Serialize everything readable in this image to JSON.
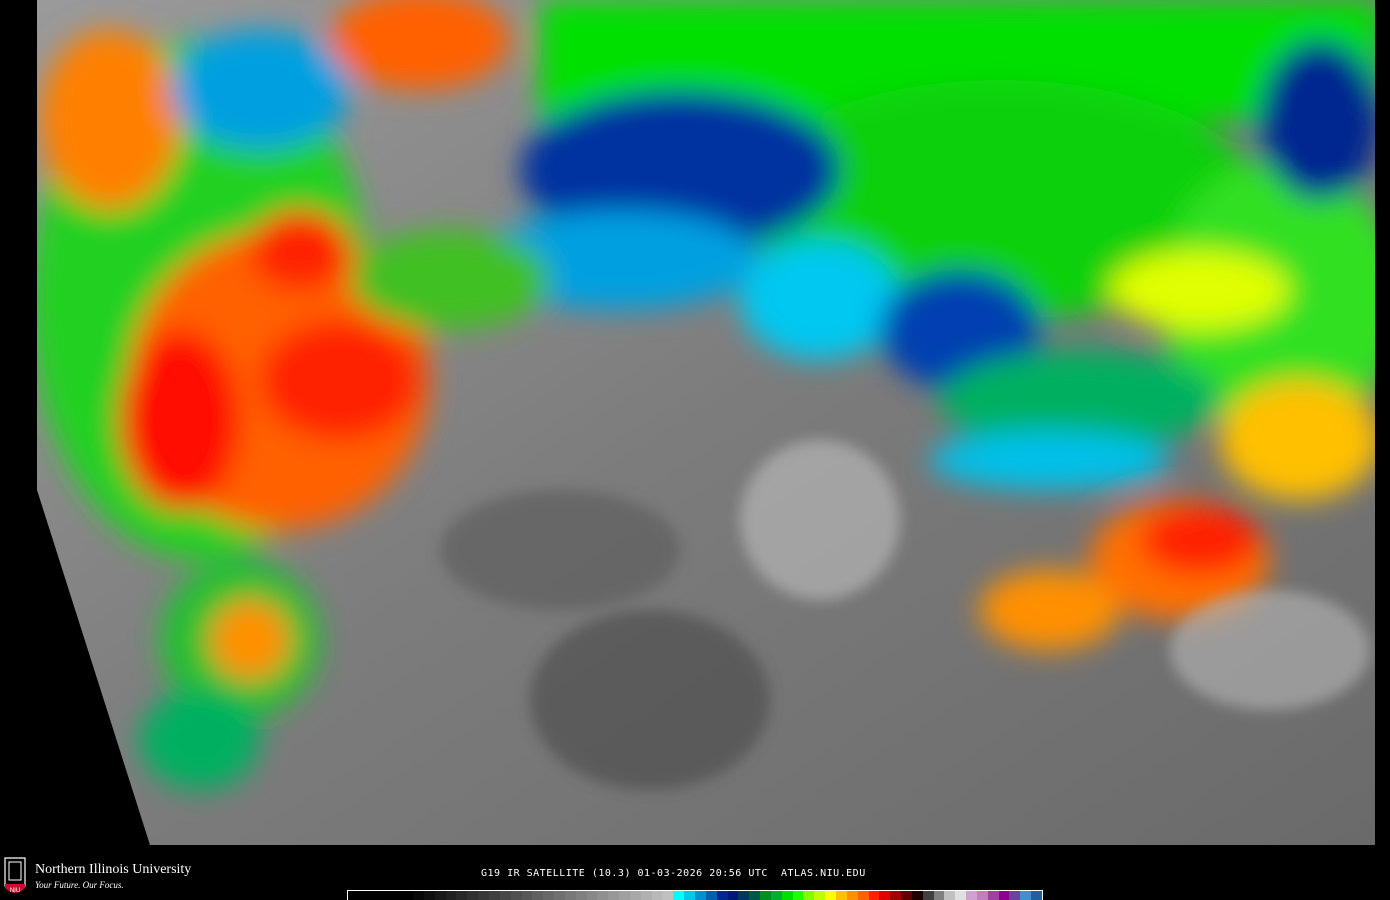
{
  "logo": {
    "name": "Northern Illinois University",
    "tagline": "Your Future. Our Focus.",
    "crest_text": "NIU"
  },
  "caption": "G19 IR SATELLITE (10.3) 01-03-2026 20:56 UTC  ATLAS.NIU.EDU",
  "colorbar": {
    "colors": [
      "#000000",
      "#000000",
      "#000000",
      "#000000",
      "#000000",
      "#000000",
      "#080808",
      "#101010",
      "#181818",
      "#202020",
      "#282828",
      "#303030",
      "#383838",
      "#404040",
      "#484848",
      "#505050",
      "#585858",
      "#606060",
      "#686868",
      "#707070",
      "#787878",
      "#808080",
      "#888888",
      "#909090",
      "#989898",
      "#a0a0a0",
      "#a8a8a8",
      "#b0b0b0",
      "#b8b8b8",
      "#c0c0c0",
      "#00ffff",
      "#00c8e8",
      "#0090d0",
      "#0060b0",
      "#002890",
      "#001878",
      "#003860",
      "#005848",
      "#009020",
      "#00b030",
      "#00e000",
      "#20ff00",
      "#80ff00",
      "#c0ff00",
      "#ffff00",
      "#ffc000",
      "#ff9000",
      "#ff6000",
      "#ff2000",
      "#e00000",
      "#a00000",
      "#600000",
      "#200000",
      "#404040",
      "#808080",
      "#c0c0c0",
      "#e0e0e0",
      "#d0a0d0",
      "#c080c0",
      "#a040a0",
      "#900090",
      "#7040a0",
      "#4090d0",
      "#2060a0"
    ]
  }
}
